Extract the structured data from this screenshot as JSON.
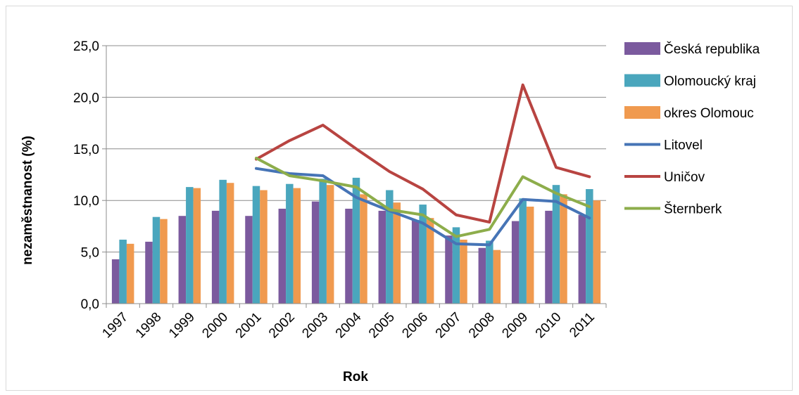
{
  "chart_data": {
    "type": "bar",
    "xlabel": "Rok",
    "ylabel": "nezaměstnanost (%)",
    "ylim": [
      0,
      25
    ],
    "yticks": [
      0,
      5,
      10,
      15,
      20,
      25
    ],
    "ytick_labels": [
      "0,0",
      "5,0",
      "10,0",
      "15,0",
      "20,0",
      "25,0"
    ],
    "grid": "horizontal",
    "legend_position": "right",
    "categories": [
      "1997",
      "1998",
      "1999",
      "2000",
      "2001",
      "2002",
      "2003",
      "2004",
      "2005",
      "2006",
      "2007",
      "2008",
      "2009",
      "2010",
      "2011"
    ],
    "bar_series": [
      {
        "name": "Česká republika",
        "color": "#7b5a9e",
        "values": [
          4.3,
          6.0,
          8.5,
          9.0,
          8.5,
          9.2,
          9.9,
          9.2,
          9.0,
          8.1,
          6.6,
          5.4,
          8.0,
          9.0,
          8.6
        ]
      },
      {
        "name": "Olomoucký kraj",
        "color": "#4aa6bd",
        "values": [
          6.2,
          8.4,
          11.3,
          12.0,
          11.4,
          11.6,
          12.1,
          12.2,
          11.0,
          9.6,
          7.4,
          6.1,
          10.2,
          11.5,
          11.1
        ]
      },
      {
        "name": "okres Olomouc",
        "color": "#f09a4f",
        "values": [
          5.8,
          8.2,
          11.2,
          11.7,
          11.0,
          11.2,
          11.5,
          10.6,
          9.8,
          8.3,
          6.2,
          5.2,
          9.4,
          10.6,
          10.0
        ]
      }
    ],
    "line_series": [
      {
        "name": "Litovel",
        "color": "#4674b6",
        "values": [
          null,
          null,
          null,
          null,
          13.1,
          12.6,
          12.4,
          10.3,
          9.0,
          7.8,
          5.8,
          5.7,
          10.1,
          9.9,
          8.3
        ]
      },
      {
        "name": "Uničov",
        "color": "#b84441",
        "values": [
          null,
          null,
          null,
          null,
          14.0,
          15.8,
          17.3,
          15.0,
          12.8,
          11.1,
          8.6,
          7.9,
          21.2,
          13.2,
          12.3
        ]
      },
      {
        "name": "Šternberk",
        "color": "#8dad4b",
        "values": [
          null,
          null,
          null,
          null,
          14.1,
          12.4,
          11.9,
          11.3,
          9.1,
          8.6,
          6.5,
          7.2,
          12.3,
          10.7,
          9.4
        ]
      }
    ]
  }
}
